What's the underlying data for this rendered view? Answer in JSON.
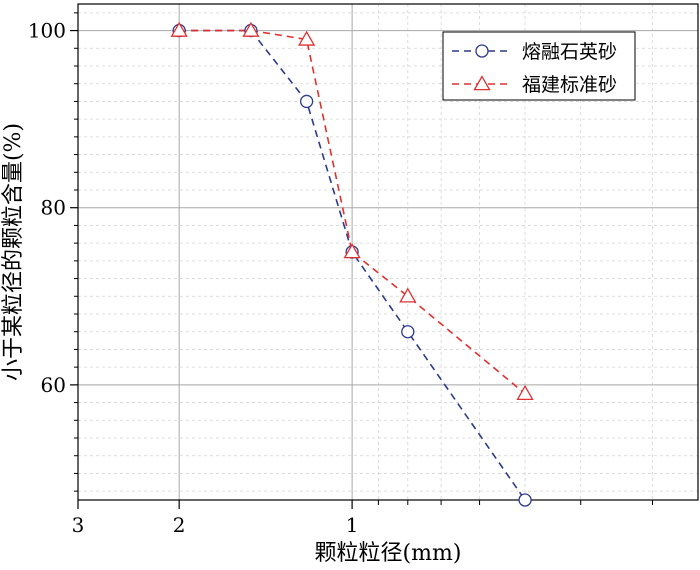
{
  "chart_data": {
    "type": "line",
    "title": "",
    "xlabel": "颗粒粒径(mm)",
    "ylabel": "小于某粒径的颗粒含量(%)",
    "x_scale": "log",
    "x_reversed": true,
    "xlim": [
      3,
      0.25
    ],
    "ylim": [
      47,
      103
    ],
    "x_ticks": [
      3,
      2,
      1
    ],
    "y_ticks": [
      60,
      80,
      100
    ],
    "grid": true,
    "legend_position": "top-right",
    "series": [
      {
        "name": "熔融石英砂",
        "color": "#2b3a8c",
        "line_style": "dashed",
        "marker": "circle",
        "x": [
          2,
          1.5,
          1.2,
          1,
          0.8,
          0.5
        ],
        "y": [
          100,
          100,
          92,
          75,
          66,
          47
        ]
      },
      {
        "name": "福建标准砂",
        "color": "#e03030",
        "line_style": "dashed",
        "marker": "triangle",
        "x": [
          2,
          1.5,
          1.2,
          1,
          0.8,
          0.5
        ],
        "y": [
          100,
          100,
          99,
          75,
          70,
          59
        ]
      }
    ]
  }
}
